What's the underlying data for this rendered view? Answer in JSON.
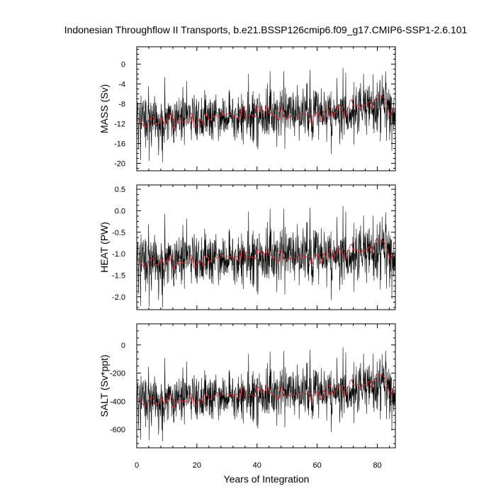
{
  "title": "Indonesian Throughflow II Transports, b.e21.BSSP126cmip6.f09_g17.CMIP6-SSP1-2.6.101",
  "xlabel": "Years of Integration",
  "colors": {
    "monthly": "#000000",
    "annual": "#e8262b"
  },
  "chart_data": [
    {
      "type": "line",
      "ylabel": "MASS (Sv)",
      "xlim": [
        0,
        86
      ],
      "ylim": [
        -21.5,
        3.5
      ],
      "xticks": [
        0,
        20,
        40,
        60,
        80
      ],
      "yticks": [
        0,
        -4,
        -8,
        -12,
        -16,
        -20
      ],
      "ytick_labels": [
        "0",
        "-4",
        "-8",
        "-12",
        "-16",
        "-20"
      ],
      "series": [
        {
          "x": [
            0,
            10,
            20,
            30,
            40,
            50,
            60,
            70,
            76,
            80,
            82,
            86
          ],
          "y": [
            -11,
            -11.5,
            -11,
            -10.5,
            -10.5,
            -10,
            -10,
            -9.5,
            -8.5,
            -7.5,
            -7,
            -10.5
          ]
        },
        {
          "x": [
            0,
            10,
            20,
            30,
            40,
            50,
            60,
            70,
            76,
            80,
            82,
            86
          ],
          "y": [
            -11,
            -11.5,
            -11,
            -10.5,
            -10.5,
            -10,
            -10,
            -9.5,
            -8.5,
            -7.5,
            -7,
            -10.5
          ]
        }
      ]
    },
    {
      "type": "line",
      "ylabel": "HEAT (PW)",
      "xlim": [
        0,
        86
      ],
      "ylim": [
        -2.3,
        0.6
      ],
      "xticks": [
        0,
        20,
        40,
        60,
        80
      ],
      "yticks": [
        0.5,
        0.0,
        -0.5,
        -1.0,
        -1.5,
        -2.0
      ],
      "ytick_labels": [
        "0.5",
        "0.0",
        "-0.5",
        "-1.0",
        "-1.5",
        "-2.0"
      ],
      "series": [
        {
          "x": [
            0,
            10,
            20,
            30,
            40,
            50,
            60,
            70,
            76,
            80,
            82,
            86
          ],
          "y": [
            -1.15,
            -1.2,
            -1.15,
            -1.1,
            -1.1,
            -1.05,
            -1.05,
            -1.0,
            -0.95,
            -0.8,
            -0.75,
            -1.15
          ]
        },
        {
          "x": [
            0,
            10,
            20,
            30,
            40,
            50,
            60,
            70,
            76,
            80,
            82,
            86
          ],
          "y": [
            -1.15,
            -1.2,
            -1.15,
            -1.1,
            -1.1,
            -1.05,
            -1.05,
            -1.0,
            -0.95,
            -0.8,
            -0.75,
            -1.15
          ]
        }
      ]
    },
    {
      "type": "line",
      "ylabel": "SALT (Sv*ppt)",
      "xlim": [
        0,
        86
      ],
      "ylim": [
        -730,
        150
      ],
      "xticks": [
        0,
        20,
        40,
        60,
        80
      ],
      "yticks": [
        0,
        -200,
        -400,
        -600
      ],
      "ytick_labels": [
        "0",
        "-200",
        "-400",
        "-600"
      ],
      "series": [
        {
          "x": [
            0,
            10,
            20,
            30,
            40,
            50,
            60,
            70,
            76,
            80,
            82,
            86
          ],
          "y": [
            -380,
            -400,
            -380,
            -360,
            -360,
            -340,
            -340,
            -320,
            -290,
            -250,
            -230,
            -370
          ]
        },
        {
          "x": [
            0,
            10,
            20,
            30,
            40,
            50,
            60,
            70,
            76,
            80,
            82,
            86
          ],
          "y": [
            -380,
            -400,
            -380,
            -360,
            -360,
            -340,
            -340,
            -320,
            -290,
            -250,
            -230,
            -370
          ]
        }
      ]
    }
  ]
}
